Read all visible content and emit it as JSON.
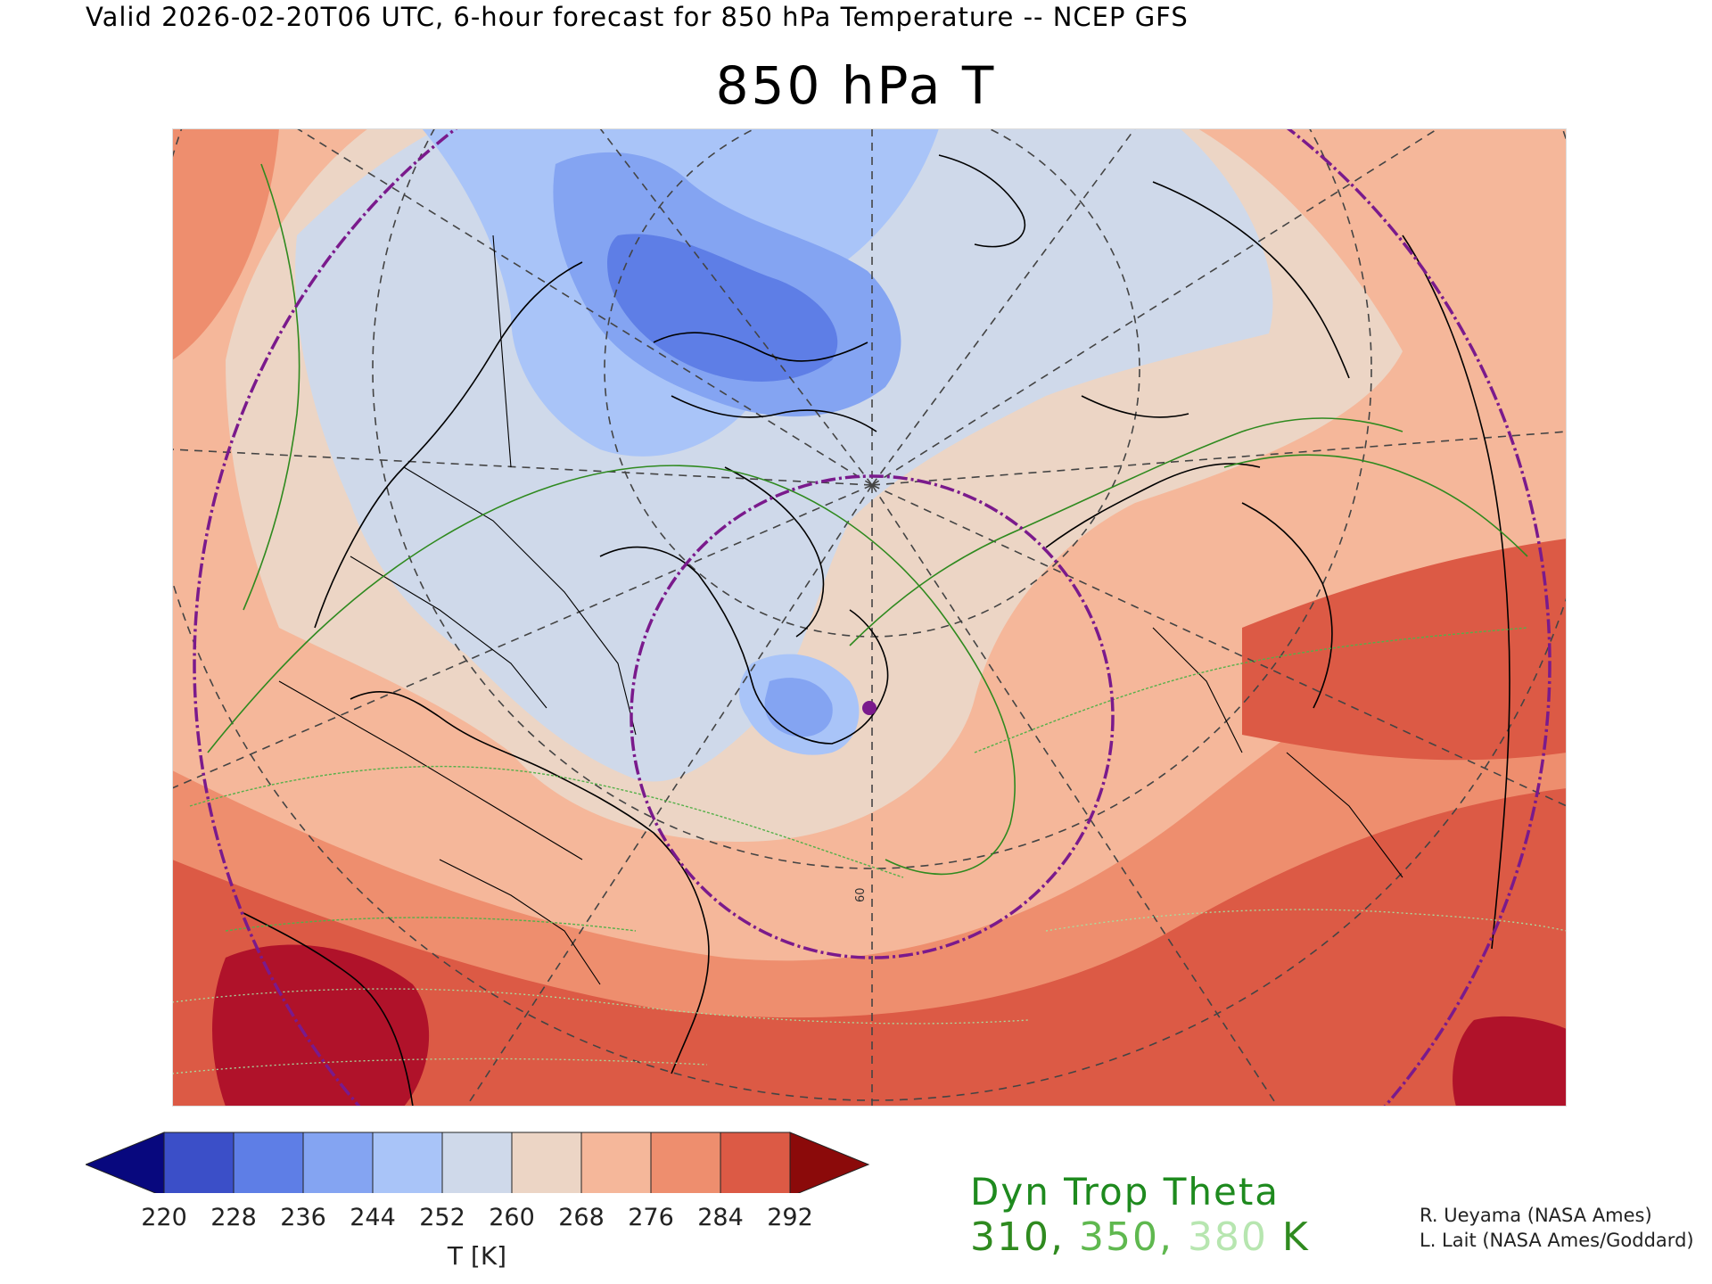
{
  "header": {
    "valid_line": "Valid 2026-02-20T06 UTC, 6-hour forecast for 850 hPa Temperature -- NCEP GFS",
    "title": "850 hPa T"
  },
  "map": {
    "projection": "north-polar-stereographic",
    "field": "850 hPa temperature (filled)",
    "overlay": "dynamic tropopause potential temperature contours",
    "colors": {
      "lt220": "#0a1a8c",
      "c220": "#3b4fc8",
      "c228": "#5e7ee6",
      "c236": "#84a4f2",
      "c244": "#a9c4f8",
      "c252": "#cfd9ea",
      "c260": "#ecd5c5",
      "c268": "#f5b79a",
      "c276": "#ee8e6e",
      "c284": "#dc5a45",
      "gt292": "#b0122a",
      "coast": "#000000",
      "graticule": "#444444",
      "range_ring": "#7a1a8c",
      "theta310": "#2f8a1f",
      "theta350": "#55b04a",
      "theta380": "#a6e0a0"
    },
    "graticule_label": "60",
    "station_marker": "purple-dot"
  },
  "colorbar": {
    "ticks": [
      "220",
      "228",
      "236",
      "244",
      "252",
      "260",
      "268",
      "276",
      "284",
      "292"
    ],
    "units": "T [K]",
    "colors": [
      "#08087e",
      "#3b4fc8",
      "#5e7ee6",
      "#84a4f2",
      "#a9c4f8",
      "#cfd9ea",
      "#ecd5c5",
      "#f5b79a",
      "#ee8e6e",
      "#dc5a45",
      "#8b0a0a"
    ]
  },
  "legend": {
    "title": "Dyn Trop Theta",
    "v1": "310,",
    "v2": "350,",
    "v3": "380",
    "unit": "K",
    "colors": {
      "v1": "#2f8a1f",
      "v2": "#5fb84f",
      "v3": "#b7e6b0",
      "unit": "#2f8a1f"
    }
  },
  "credits": {
    "line1": "R. Ueyama (NASA Ames)",
    "line2": "L. Lait (NASA Ames/Goddard)"
  }
}
